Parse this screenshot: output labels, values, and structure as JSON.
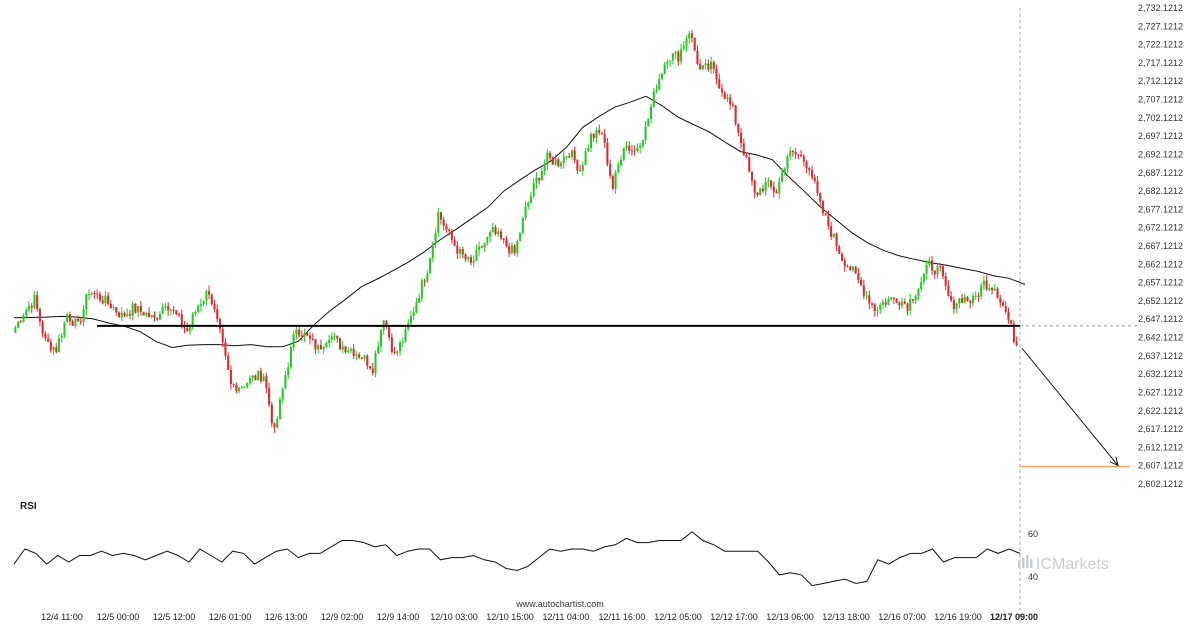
{
  "chart_data": {
    "type": "candlestick",
    "symbol_timeframe": "hourly",
    "colors": {
      "up": "#22cc22",
      "down": "#e0282d",
      "moving_average": "#111111",
      "support_line": "#000000",
      "target_line": "#ff9955",
      "rsi_line": "#111111"
    },
    "y_axis": {
      "range": [
        2602.1212,
        2732.1212
      ],
      "ticks": [
        "2,732.1212",
        "2,727.1212",
        "2,722.1212",
        "2,717.1212",
        "2,712.1212",
        "2,707.1212",
        "2,702.1212",
        "2,697.1212",
        "2,692.1212",
        "2,687.1212",
        "2,682.1212",
        "2,677.1212",
        "2,672.1212",
        "2,667.1212",
        "2,662.1212",
        "2,657.1212",
        "2,652.1212",
        "2,647.1212",
        "2,642.1212",
        "2,637.1212",
        "2,632.1212",
        "2,627.1212",
        "2,622.1212",
        "2,617.1212",
        "2,612.1212",
        "2,607.1212",
        "2,602.1212"
      ]
    },
    "x_axis": {
      "ticks": [
        "12/4 11:00",
        "12/5 00:00",
        "12/5 12:00",
        "12/6 01:00",
        "12/6 13:00",
        "12/9 02:00",
        "12/9 14:00",
        "12/10 03:00",
        "12/10 15:00",
        "12/11 04:00",
        "12/11 16:00",
        "12/12 05:00",
        "12/12 17:00",
        "12/13 06:00",
        "12/13 18:00",
        "12/16 07:00",
        "12/16 19:00",
        "12/17 09:00"
      ],
      "highlighted": "12/17 09:00"
    },
    "price_path": [
      2643.5,
      2649,
      2652.5,
      2641,
      2639,
      2648.5,
      2645,
      2655,
      2653,
      2651,
      2648,
      2650,
      2649,
      2647,
      2652,
      2648,
      2644,
      2651,
      2655,
      2643,
      2629,
      2629,
      2631,
      2632,
      2616,
      2632,
      2645,
      2642,
      2639,
      2643,
      2640,
      2639,
      2637,
      2634,
      2648,
      2637,
      2643,
      2652,
      2661,
      2676,
      2670,
      2665,
      2662,
      2667,
      2671,
      2668,
      2665,
      2677,
      2685,
      2691,
      2690,
      2693,
      2688,
      2697,
      2698,
      2683,
      2695,
      2693,
      2699,
      2711,
      2719,
      2719,
      2726,
      2715,
      2716,
      2710,
      2704,
      2693,
      2681,
      2684,
      2682,
      2692,
      2692,
      2689,
      2678,
      2671,
      2664,
      2660,
      2655,
      2650,
      2652,
      2653,
      2651,
      2656,
      2662,
      2660,
      2651,
      2653,
      2652,
      2657,
      2656,
      2649,
      2640
    ],
    "moving_average": [
      2647.5,
      2647.6,
      2647.7,
      2647.9,
      2647.7,
      2647.2,
      2646.1,
      2645.2,
      2643.7,
      2641.0,
      2639.4,
      2640.0,
      2640.2,
      2640.2,
      2639.9,
      2640.2,
      2639.6,
      2639.6,
      2641.1,
      2645.6,
      2649.4,
      2652.6,
      2656.0,
      2658.1,
      2660.4,
      2662.8,
      2665.6,
      2668.9,
      2671.7,
      2674.7,
      2677.7,
      2682.1,
      2685.1,
      2687.9,
      2690.4,
      2694.2,
      2699.5,
      2702.4,
      2705.0,
      2706.4,
      2708.0,
      2705.5,
      2702.4,
      2700.3,
      2698.3,
      2695.5,
      2692.9,
      2692.0,
      2690.7,
      2686.2,
      2682.2,
      2678.0,
      2674.4,
      2670.9,
      2668.1,
      2666.0,
      2664.5,
      2663.5,
      2662.6,
      2661.9,
      2661.0,
      2660.2,
      2659.0,
      2658.3,
      2656.6
    ],
    "support_level": 2645.3,
    "last_price": 2640.0,
    "target_price": 2606.9,
    "rsi": {
      "label": "RSI",
      "ticks": [
        "60",
        "40"
      ],
      "values": [
        46,
        53,
        51,
        46,
        50,
        47,
        50,
        50,
        52,
        50,
        51,
        50,
        48,
        50,
        52,
        50,
        47,
        53,
        50,
        47,
        52,
        51,
        46,
        49,
        52,
        53,
        49,
        51,
        51,
        54,
        57,
        57,
        56,
        54,
        55,
        50,
        52,
        53,
        53,
        48,
        49,
        49,
        50,
        48,
        47,
        44,
        43,
        45,
        49,
        53,
        52,
        53,
        53,
        52,
        54,
        55,
        58,
        56,
        56,
        57,
        57,
        57,
        61,
        57,
        55,
        52,
        52,
        52,
        52,
        47,
        41,
        42,
        41,
        36,
        37,
        38,
        39,
        37,
        38,
        48,
        46,
        49,
        51,
        51,
        53,
        47,
        49,
        49,
        49,
        53,
        51,
        53,
        51
      ]
    }
  },
  "branding": {
    "logo_text": "ICMarkets",
    "source": "www.autochartist.com"
  }
}
